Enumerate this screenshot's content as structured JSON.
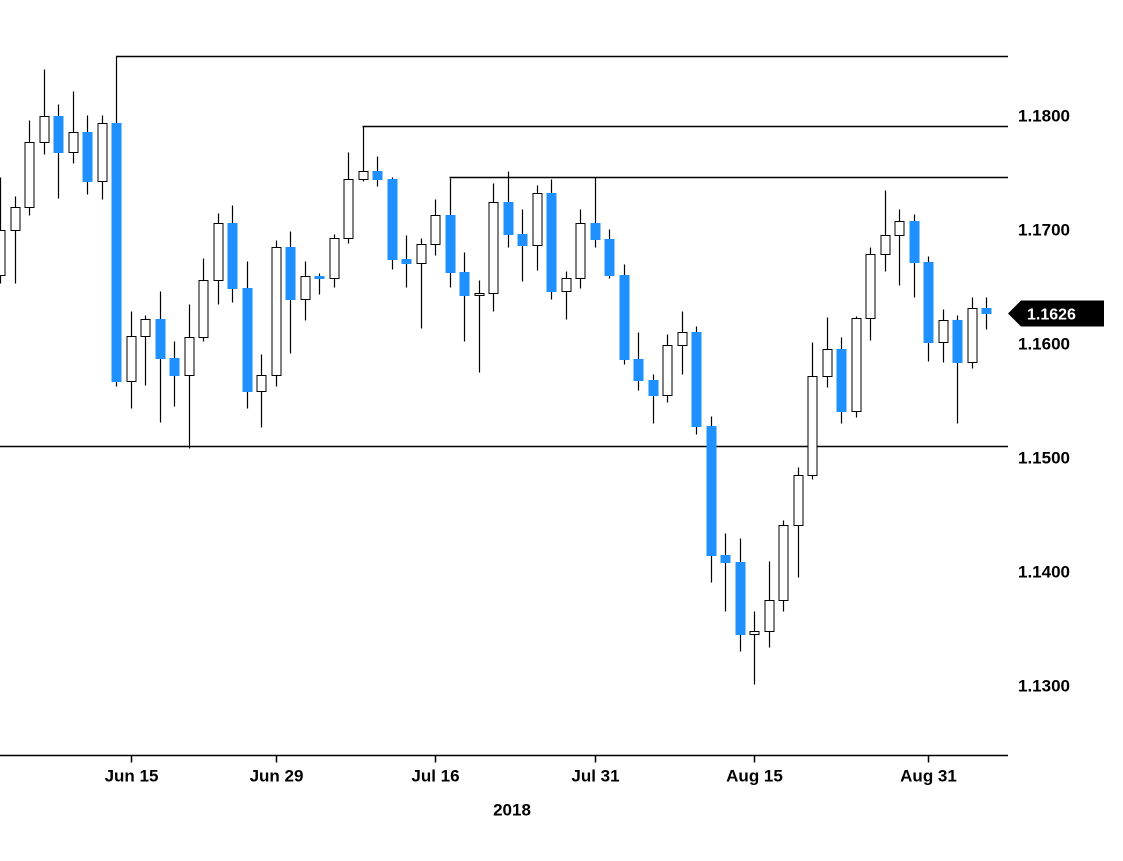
{
  "chart_data": {
    "type": "candlestick",
    "ylim": [
      1.124,
      1.1901
    ],
    "grid": false,
    "colors": {
      "background": "#ffffff",
      "up_fill": "#ffffff",
      "down_fill": "#1e90ff",
      "stroke": "#000000",
      "level_line": "#000000",
      "axis": "#000000"
    },
    "price_tag": {
      "label": "1.1626",
      "value": 1.1626,
      "bg": "#000000",
      "fg": "#ffffff"
    },
    "y_axis": {
      "labels": [
        {
          "label": "1.1800",
          "value": 1.18
        },
        {
          "label": "1.1700",
          "value": 1.17
        },
        {
          "label": "1.1600",
          "value": 1.16
        },
        {
          "label": "1.1500",
          "value": 1.15
        },
        {
          "label": "1.1400",
          "value": 1.14
        },
        {
          "label": "1.1300",
          "value": 1.13
        }
      ]
    },
    "x_axis": {
      "year_label": "2018",
      "ticks": [
        {
          "label": "Jun 15",
          "index": 9
        },
        {
          "label": "Jun 29",
          "index": 19
        },
        {
          "label": "Jul 16",
          "index": 30
        },
        {
          "label": "Jul 31",
          "index": 41
        },
        {
          "label": "Aug 15",
          "index": 52
        },
        {
          "label": "Aug 31",
          "index": 64
        }
      ]
    },
    "levels": [
      {
        "price": 1.1852,
        "from_index": 8
      },
      {
        "price": 1.179,
        "from_index": 25
      },
      {
        "price": 1.1746,
        "from_index": 31
      },
      {
        "price": 1.151,
        "from_index": -1
      }
    ],
    "candles": [
      {
        "d": "Jun 4",
        "o": 1.166,
        "h": 1.1746,
        "l": 1.1653,
        "c": 1.1699
      },
      {
        "d": "Jun 5",
        "o": 1.1699,
        "h": 1.1729,
        "l": 1.1653,
        "c": 1.1719
      },
      {
        "d": "Jun 6",
        "o": 1.1719,
        "h": 1.1796,
        "l": 1.1712,
        "c": 1.1776
      },
      {
        "d": "Jun 7",
        "o": 1.1776,
        "h": 1.184,
        "l": 1.1766,
        "c": 1.1799
      },
      {
        "d": "Jun 8",
        "o": 1.1799,
        "h": 1.181,
        "l": 1.1727,
        "c": 1.1768
      },
      {
        "d": "Jun 11",
        "o": 1.1768,
        "h": 1.1821,
        "l": 1.1758,
        "c": 1.1785
      },
      {
        "d": "Jun 12",
        "o": 1.1785,
        "h": 1.18,
        "l": 1.1731,
        "c": 1.1742
      },
      {
        "d": "Jun 13",
        "o": 1.1742,
        "h": 1.18,
        "l": 1.1726,
        "c": 1.1793
      },
      {
        "d": "Jun 14",
        "o": 1.1793,
        "h": 1.1852,
        "l": 1.1562,
        "c": 1.1567
      },
      {
        "d": "Jun 15",
        "o": 1.1567,
        "h": 1.1628,
        "l": 1.1543,
        "c": 1.1606
      },
      {
        "d": "Jun 18",
        "o": 1.1606,
        "h": 1.1625,
        "l": 1.1563,
        "c": 1.1621
      },
      {
        "d": "Jun 19",
        "o": 1.1621,
        "h": 1.1646,
        "l": 1.1531,
        "c": 1.1587
      },
      {
        "d": "Jun 20",
        "o": 1.1587,
        "h": 1.1602,
        "l": 1.1545,
        "c": 1.1572
      },
      {
        "d": "Jun 21",
        "o": 1.1572,
        "h": 1.1634,
        "l": 1.1508,
        "c": 1.1605
      },
      {
        "d": "Jun 22",
        "o": 1.1605,
        "h": 1.1675,
        "l": 1.1602,
        "c": 1.1655
      },
      {
        "d": "Jun 25",
        "o": 1.1655,
        "h": 1.1714,
        "l": 1.1634,
        "c": 1.1705
      },
      {
        "d": "Jun 26",
        "o": 1.1705,
        "h": 1.1721,
        "l": 1.1636,
        "c": 1.1648
      },
      {
        "d": "Jun 27",
        "o": 1.1648,
        "h": 1.1672,
        "l": 1.1543,
        "c": 1.1558
      },
      {
        "d": "Jun 28",
        "o": 1.1558,
        "h": 1.159,
        "l": 1.1526,
        "c": 1.1572
      },
      {
        "d": "Jun 29",
        "o": 1.1572,
        "h": 1.169,
        "l": 1.1562,
        "c": 1.1684
      },
      {
        "d": "Jul 2",
        "o": 1.1684,
        "h": 1.1698,
        "l": 1.1591,
        "c": 1.1639
      },
      {
        "d": "Jul 3",
        "o": 1.1639,
        "h": 1.1672,
        "l": 1.162,
        "c": 1.1659
      },
      {
        "d": "Jul 4",
        "o": 1.1659,
        "h": 1.1661,
        "l": 1.1643,
        "c": 1.1657
      },
      {
        "d": "Jul 5",
        "o": 1.1657,
        "h": 1.1696,
        "l": 1.1649,
        "c": 1.1692
      },
      {
        "d": "Jul 6",
        "o": 1.1692,
        "h": 1.1768,
        "l": 1.1688,
        "c": 1.1744
      },
      {
        "d": "Jul 9",
        "o": 1.1744,
        "h": 1.179,
        "l": 1.1742,
        "c": 1.1751
      },
      {
        "d": "Jul 10",
        "o": 1.1751,
        "h": 1.1764,
        "l": 1.1738,
        "c": 1.1744
      },
      {
        "d": "Jul 11",
        "o": 1.1744,
        "h": 1.1746,
        "l": 1.1665,
        "c": 1.1674
      },
      {
        "d": "Jul 12",
        "o": 1.1674,
        "h": 1.1695,
        "l": 1.1649,
        "c": 1.167
      },
      {
        "d": "Jul 13",
        "o": 1.167,
        "h": 1.1692,
        "l": 1.1613,
        "c": 1.1687
      },
      {
        "d": "Jul 16",
        "o": 1.1687,
        "h": 1.1726,
        "l": 1.1677,
        "c": 1.1712
      },
      {
        "d": "Jul 17",
        "o": 1.1712,
        "h": 1.1745,
        "l": 1.1649,
        "c": 1.1662
      },
      {
        "d": "Jul 18",
        "o": 1.1662,
        "h": 1.168,
        "l": 1.1602,
        "c": 1.1642
      },
      {
        "d": "Jul 19",
        "o": 1.1642,
        "h": 1.1655,
        "l": 1.1575,
        "c": 1.1644
      },
      {
        "d": "Jul 20",
        "o": 1.1644,
        "h": 1.174,
        "l": 1.1628,
        "c": 1.1724
      },
      {
        "d": "Jul 23",
        "o": 1.1724,
        "h": 1.1751,
        "l": 1.1684,
        "c": 1.1696
      },
      {
        "d": "Jul 24",
        "o": 1.1696,
        "h": 1.1718,
        "l": 1.1654,
        "c": 1.1686
      },
      {
        "d": "Jul 25",
        "o": 1.1686,
        "h": 1.1739,
        "l": 1.1664,
        "c": 1.1732
      },
      {
        "d": "Jul 26",
        "o": 1.1732,
        "h": 1.1744,
        "l": 1.1639,
        "c": 1.1646
      },
      {
        "d": "Jul 27",
        "o": 1.1646,
        "h": 1.1663,
        "l": 1.1621,
        "c": 1.1657
      },
      {
        "d": "Jul 30",
        "o": 1.1657,
        "h": 1.1718,
        "l": 1.1648,
        "c": 1.1705
      },
      {
        "d": "Jul 31",
        "o": 1.1705,
        "h": 1.1746,
        "l": 1.1684,
        "c": 1.1691
      },
      {
        "d": "Aug 1",
        "o": 1.1691,
        "h": 1.17,
        "l": 1.1657,
        "c": 1.166
      },
      {
        "d": "Aug 2",
        "o": 1.166,
        "h": 1.1669,
        "l": 1.1582,
        "c": 1.1586
      },
      {
        "d": "Aug 3",
        "o": 1.1586,
        "h": 1.161,
        "l": 1.1559,
        "c": 1.1568
      },
      {
        "d": "Aug 6",
        "o": 1.1568,
        "h": 1.1573,
        "l": 1.153,
        "c": 1.1554
      },
      {
        "d": "Aug 7",
        "o": 1.1554,
        "h": 1.1608,
        "l": 1.1548,
        "c": 1.1598
      },
      {
        "d": "Aug 8",
        "o": 1.1598,
        "h": 1.1628,
        "l": 1.1573,
        "c": 1.161
      },
      {
        "d": "Aug 9",
        "o": 1.161,
        "h": 1.1615,
        "l": 1.152,
        "c": 1.1527
      },
      {
        "d": "Aug 10",
        "o": 1.1527,
        "h": 1.1536,
        "l": 1.139,
        "c": 1.1414
      },
      {
        "d": "Aug 13",
        "o": 1.1414,
        "h": 1.1433,
        "l": 1.1365,
        "c": 1.1408
      },
      {
        "d": "Aug 14",
        "o": 1.1408,
        "h": 1.1429,
        "l": 1.133,
        "c": 1.1345
      },
      {
        "d": "Aug 15",
        "o": 1.1345,
        "h": 1.1365,
        "l": 1.1301,
        "c": 1.1347
      },
      {
        "d": "Aug 16",
        "o": 1.1347,
        "h": 1.1409,
        "l": 1.1333,
        "c": 1.1375
      },
      {
        "d": "Aug 17",
        "o": 1.1375,
        "h": 1.1445,
        "l": 1.1365,
        "c": 1.144
      },
      {
        "d": "Aug 20",
        "o": 1.144,
        "h": 1.1491,
        "l": 1.1395,
        "c": 1.1484
      },
      {
        "d": "Aug 21",
        "o": 1.1484,
        "h": 1.1601,
        "l": 1.1481,
        "c": 1.1571
      },
      {
        "d": "Aug 22",
        "o": 1.1571,
        "h": 1.1623,
        "l": 1.1561,
        "c": 1.1595
      },
      {
        "d": "Aug 23",
        "o": 1.1595,
        "h": 1.1605,
        "l": 1.153,
        "c": 1.154
      },
      {
        "d": "Aug 24",
        "o": 1.154,
        "h": 1.1624,
        "l": 1.1535,
        "c": 1.1622
      },
      {
        "d": "Aug 27",
        "o": 1.1622,
        "h": 1.1684,
        "l": 1.1603,
        "c": 1.1678
      },
      {
        "d": "Aug 28",
        "o": 1.1678,
        "h": 1.1734,
        "l": 1.1663,
        "c": 1.1695
      },
      {
        "d": "Aug 29",
        "o": 1.1695,
        "h": 1.1718,
        "l": 1.1651,
        "c": 1.1707
      },
      {
        "d": "Aug 30",
        "o": 1.1707,
        "h": 1.1713,
        "l": 1.164,
        "c": 1.1671
      },
      {
        "d": "Aug 31",
        "o": 1.1671,
        "h": 1.1676,
        "l": 1.1584,
        "c": 1.1601
      },
      {
        "d": "Sep 3",
        "o": 1.1601,
        "h": 1.163,
        "l": 1.1583,
        "c": 1.162
      },
      {
        "d": "Sep 4",
        "o": 1.162,
        "h": 1.1625,
        "l": 1.153,
        "c": 1.1583
      },
      {
        "d": "Sep 5",
        "o": 1.1583,
        "h": 1.164,
        "l": 1.1578,
        "c": 1.1631
      },
      {
        "d": "Sep 6",
        "o": 1.1631,
        "h": 1.164,
        "l": 1.1612,
        "c": 1.1626
      }
    ]
  }
}
